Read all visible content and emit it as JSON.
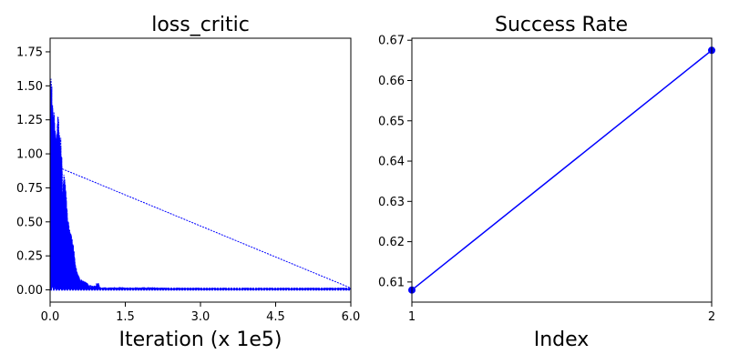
{
  "chart_data": [
    {
      "type": "line",
      "title": "loss_critic",
      "xlabel": "Iteration (x 1e5)",
      "ylabel": "",
      "xlim": [
        0,
        6.0
      ],
      "ylim": [
        -0.09,
        1.85
      ],
      "xticks": [
        "0.0",
        "1.5",
        "3.0",
        "4.5",
        "6.0"
      ],
      "yticks": [
        "0.00",
        "0.25",
        "0.50",
        "0.75",
        "1.00",
        "1.25",
        "1.50",
        "1.75"
      ],
      "grid": false,
      "color": "#0000ff",
      "series": [
        {
          "x": [
            0.0,
            0.02,
            0.04,
            0.06,
            0.08,
            0.1,
            0.13,
            0.16,
            0.2,
            0.25,
            0.3,
            0.35,
            0.4,
            0.45,
            0.5,
            0.55,
            0.6,
            0.7,
            0.8,
            0.9,
            0.95,
            1.0,
            1.2,
            1.5,
            2.0,
            2.5,
            3.0,
            3.5,
            4.0,
            4.5,
            5.0,
            5.5,
            6.0
          ],
          "y_max": [
            1.7,
            1.65,
            1.55,
            1.4,
            1.3,
            1.2,
            1.15,
            1.32,
            1.2,
            0.9,
            0.8,
            0.55,
            0.42,
            0.4,
            0.2,
            0.12,
            0.08,
            0.06,
            0.04,
            0.03,
            0.07,
            0.02,
            0.02,
            0.02,
            0.02,
            0.015,
            0.015,
            0.015,
            0.015,
            0.015,
            0.015,
            0.015,
            0.015
          ],
          "y_min": [
            0.0,
            0.0,
            0.0,
            0.0,
            0.0,
            0.0,
            0.0,
            0.0,
            0.0,
            0.0,
            0.0,
            0.0,
            0.0,
            0.0,
            0.0,
            0.0,
            0.0,
            0.0,
            0.0,
            0.0,
            0.0,
            0.0,
            0.0,
            0.0,
            0.0,
            0.0,
            0.0,
            0.0,
            0.0,
            0.0,
            0.0,
            0.0,
            0.0
          ]
        }
      ]
    },
    {
      "type": "line",
      "title": "Success Rate",
      "xlabel": "Index",
      "ylabel": "",
      "xlim": [
        1,
        2
      ],
      "ylim": [
        0.605,
        0.6705
      ],
      "xticks": [
        "1",
        "2"
      ],
      "yticks": [
        "0.61",
        "0.62",
        "0.63",
        "0.64",
        "0.65",
        "0.66",
        "0.67"
      ],
      "grid": false,
      "color": "#0000ff",
      "series": [
        {
          "x": [
            1,
            2
          ],
          "y": [
            0.608,
            0.6675
          ]
        }
      ]
    }
  ]
}
